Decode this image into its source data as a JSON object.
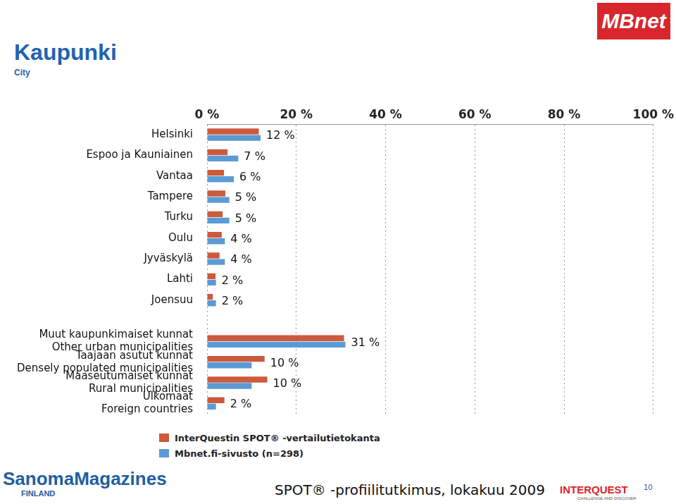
{
  "chart_data": {
    "type": "bar",
    "orientation": "horizontal",
    "title": "Kaupunki",
    "subtitle": "City",
    "categories": [
      "Helsinki",
      "Espoo ja Kauniainen",
      "Vantaa",
      "Tampere",
      "Turku",
      "Oulu",
      "Jyväskylä",
      "Lahti",
      "Joensuu",
      null,
      [
        "Muut kaupunkimaiset kunnat",
        "Other urban municipalities"
      ],
      [
        "Taajaan asutut kunnat",
        "Densely populated municipalities"
      ],
      [
        "Maaseutumaiset kunnat",
        "Rural municipalities"
      ],
      [
        "Ulkomaat",
        "Foreign countries"
      ]
    ],
    "series": [
      {
        "name": "InterQuestin SPOT® -vertailutietokanta",
        "color": "#cc5a3c",
        "values": [
          11.6,
          4.6,
          3.8,
          4.1,
          3.5,
          3.3,
          2.8,
          1.9,
          1.3,
          null,
          30.7,
          12.9,
          13.5,
          3.9
        ]
      },
      {
        "name": "Mbnet.fi-sivusto (n=298)",
        "color": "#5b9bd5",
        "values": [
          12,
          7,
          6,
          5,
          5,
          4,
          4,
          2,
          2,
          null,
          31,
          10,
          10,
          2
        ],
        "value_labels": [
          "12 %",
          "7 %",
          "6 %",
          "5 %",
          "5 %",
          "4 %",
          "4 %",
          "2 %",
          "2 %",
          null,
          "31 %",
          "10 %",
          "10 %",
          "2 %"
        ]
      }
    ],
    "xlim": [
      0,
      100
    ],
    "xticks": [
      {
        "value": 0,
        "label": "0 %"
      },
      {
        "value": 20,
        "label": "20 %"
      },
      {
        "value": 40,
        "label": "40 %"
      },
      {
        "value": 60,
        "label": "60 %"
      },
      {
        "value": 80,
        "label": "80 %"
      },
      {
        "value": 100,
        "label": "100 %"
      }
    ],
    "grid": true,
    "legend": "bottom",
    "data_labels": true
  },
  "page": {
    "logo_top": "MBnet",
    "logo_left": "SanomaMagazines",
    "logo_left_sub": "FINLAND",
    "logo_right": "INTERQUEST",
    "logo_right_sub": "CHALLENGE AND DISCOVER",
    "footer": "SPOT® -profiilitutkimus, lokakuu 2009",
    "page_number": "10"
  }
}
